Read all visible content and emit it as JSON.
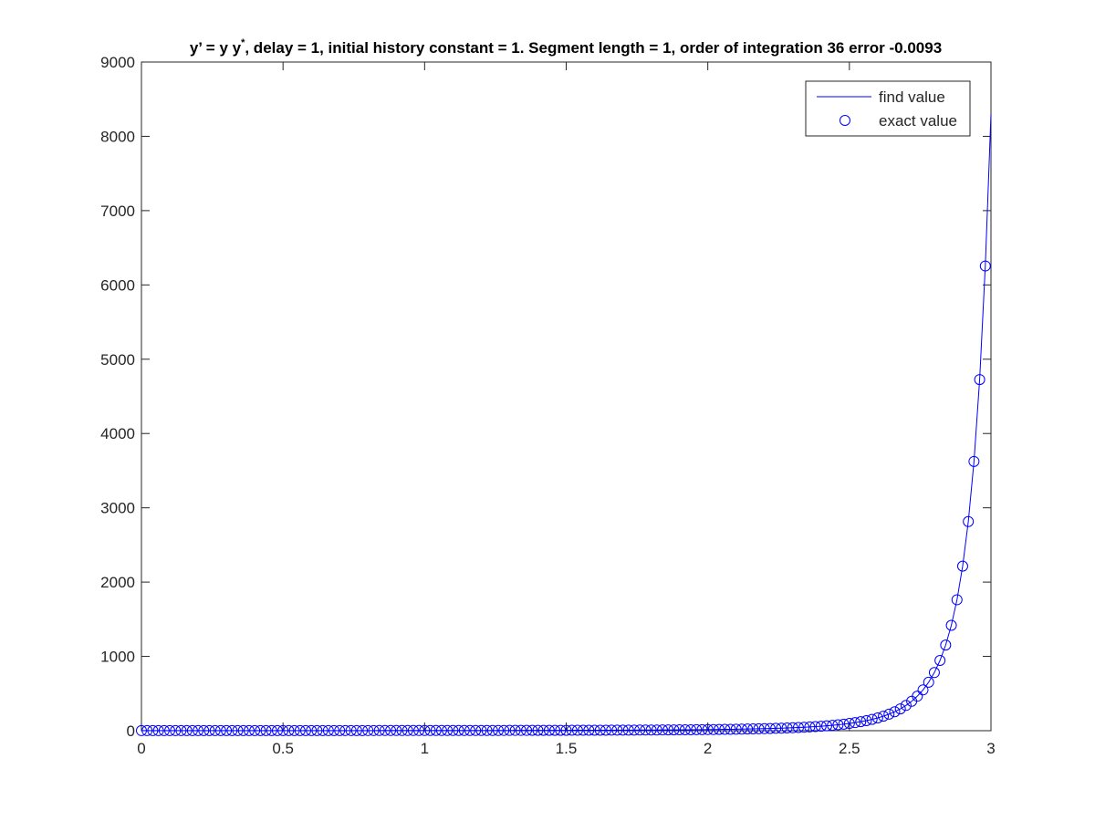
{
  "chart_data": {
    "type": "line",
    "title_parts": [
      "y’ = y y",
      "*",
      ", delay = 1, initial history constant = 1.  Segment length = 1, order of integration 36 error -0.0093"
    ],
    "x": [
      0,
      0.02,
      0.04,
      0.06,
      0.08,
      0.1,
      0.12,
      0.14,
      0.16,
      0.18,
      0.2,
      0.22,
      0.24,
      0.26,
      0.28,
      0.3,
      0.32,
      0.34,
      0.36,
      0.38,
      0.4,
      0.42,
      0.44,
      0.46,
      0.48,
      0.5,
      0.52,
      0.54,
      0.56,
      0.58,
      0.6,
      0.62,
      0.64,
      0.66,
      0.68,
      0.7,
      0.72,
      0.74,
      0.76,
      0.78,
      0.8,
      0.82,
      0.84,
      0.86,
      0.88,
      0.9,
      0.92,
      0.94,
      0.96,
      0.98,
      1,
      1.02,
      1.04,
      1.06,
      1.08,
      1.1,
      1.12,
      1.14,
      1.16,
      1.18,
      1.2,
      1.22,
      1.24,
      1.26,
      1.28,
      1.3,
      1.32,
      1.34,
      1.36,
      1.38,
      1.4,
      1.42,
      1.44,
      1.46,
      1.48,
      1.5,
      1.52,
      1.54,
      1.56,
      1.58,
      1.6,
      1.62,
      1.64,
      1.66,
      1.68,
      1.7,
      1.72,
      1.74,
      1.76,
      1.78,
      1.8,
      1.82,
      1.84,
      1.86,
      1.88,
      1.9,
      1.92,
      1.94,
      1.96,
      1.98,
      2,
      2.02,
      2.04,
      2.06,
      2.08,
      2.1,
      2.12,
      2.14,
      2.16,
      2.18,
      2.2,
      2.22,
      2.24,
      2.26,
      2.28,
      2.3,
      2.32,
      2.34,
      2.36,
      2.38,
      2.4,
      2.42,
      2.44,
      2.46,
      2.48,
      2.5,
      2.52,
      2.54,
      2.56,
      2.58,
      2.6,
      2.62,
      2.64,
      2.66,
      2.68,
      2.7,
      2.72,
      2.74,
      2.76,
      2.78,
      2.8,
      2.82,
      2.84,
      2.86,
      2.88,
      2.9,
      2.92,
      2.94,
      2.96,
      2.98,
      3
    ],
    "series": [
      {
        "name": "find value",
        "style": "line",
        "color": "#0000ff",
        "values": [
          1,
          1.02,
          1.04,
          1.06,
          1.08,
          1.11,
          1.13,
          1.15,
          1.17,
          1.2,
          1.22,
          1.25,
          1.27,
          1.3,
          1.32,
          1.35,
          1.38,
          1.4,
          1.43,
          1.46,
          1.49,
          1.52,
          1.55,
          1.58,
          1.62,
          1.65,
          1.68,
          1.72,
          1.75,
          1.79,
          1.82,
          1.86,
          1.9,
          1.93,
          1.97,
          2.01,
          2.05,
          2.1,
          2.14,
          2.18,
          2.23,
          2.27,
          2.32,
          2.36,
          2.41,
          2.46,
          2.51,
          2.56,
          2.61,
          2.66,
          2.72,
          2.77,
          2.83,
          2.89,
          2.95,
          3.02,
          3.09,
          3.16,
          3.23,
          3.31,
          3.39,
          3.48,
          3.57,
          3.66,
          3.76,
          3.86,
          3.96,
          4.08,
          4.19,
          4.32,
          4.45,
          4.58,
          4.72,
          4.88,
          5.03,
          5.2,
          5.38,
          5.56,
          5.76,
          5.97,
          6.18,
          6.42,
          6.66,
          6.92,
          7.2,
          7.49,
          7.8,
          8.13,
          8.49,
          8.86,
          9.26,
          9.69,
          10.14,
          10.62,
          11.14,
          11.7,
          12.3,
          12.94,
          13.62,
          14.36,
          15.15,
          16.01,
          16.93,
          17.93,
          19.01,
          20.18,
          21.45,
          22.83,
          24.34,
          26,
          27.79,
          29.76,
          31.93,
          34.33,
          36.97,
          39.9,
          43.14,
          46.75,
          50.78,
          55.29,
          60.36,
          66.06,
          72.5,
          79.8,
          88.1,
          97.6,
          108.5,
          121.1,
          135.6,
          152.5,
          172.2,
          195.3,
          222.6,
          255,
          293.7,
          340.1,
          396.3,
          464.7,
          548.7,
          652.6,
          782.2,
          945.3,
          1152.6,
          1418.4,
          1762.7,
          2215,
          2815,
          3624,
          4726,
          6255,
          8300
        ]
      },
      {
        "name": "exact value",
        "style": "marker",
        "color": "#0000ff",
        "values": [
          1,
          1.02,
          1.04,
          1.06,
          1.08,
          1.11,
          1.13,
          1.15,
          1.17,
          1.2,
          1.22,
          1.25,
          1.27,
          1.3,
          1.32,
          1.35,
          1.38,
          1.4,
          1.43,
          1.46,
          1.49,
          1.52,
          1.55,
          1.58,
          1.62,
          1.65,
          1.68,
          1.72,
          1.75,
          1.79,
          1.82,
          1.86,
          1.9,
          1.93,
          1.97,
          2.01,
          2.05,
          2.1,
          2.14,
          2.18,
          2.23,
          2.27,
          2.32,
          2.36,
          2.41,
          2.46,
          2.51,
          2.56,
          2.61,
          2.66,
          2.72,
          2.77,
          2.83,
          2.89,
          2.95,
          3.02,
          3.09,
          3.16,
          3.23,
          3.31,
          3.39,
          3.48,
          3.57,
          3.66,
          3.76,
          3.86,
          3.96,
          4.08,
          4.19,
          4.32,
          4.45,
          4.58,
          4.72,
          4.88,
          5.03,
          5.2,
          5.38,
          5.56,
          5.76,
          5.97,
          6.18,
          6.42,
          6.66,
          6.92,
          7.2,
          7.49,
          7.8,
          8.13,
          8.49,
          8.86,
          9.26,
          9.69,
          10.14,
          10.62,
          11.14,
          11.7,
          12.3,
          12.94,
          13.62,
          14.36,
          15.15,
          16.01,
          16.93,
          17.93,
          19.01,
          20.18,
          21.45,
          22.83,
          24.34,
          26,
          27.79,
          29.76,
          31.93,
          34.33,
          36.97,
          39.9,
          43.14,
          46.75,
          50.78,
          55.29,
          60.36,
          66.06,
          72.5,
          79.8,
          88.1,
          97.6,
          108.5,
          121.1,
          135.6,
          152.5,
          172.2,
          195.3,
          222.6,
          255,
          293.7,
          340.1,
          396.3,
          464.7,
          548.7,
          652.6,
          782.2,
          945.3,
          1152.6,
          1418.4,
          1762.7,
          2215,
          2815,
          3624,
          4726,
          6255,
          null
        ]
      }
    ],
    "xlim": [
      0,
      3
    ],
    "xticks": [
      0,
      0.5,
      1,
      1.5,
      2,
      2.5,
      3
    ],
    "ylim": [
      0,
      9000
    ],
    "yticks": [
      0,
      1000,
      2000,
      3000,
      4000,
      5000,
      6000,
      7000,
      8000,
      9000
    ],
    "grid": false,
    "legend": "upper right"
  }
}
